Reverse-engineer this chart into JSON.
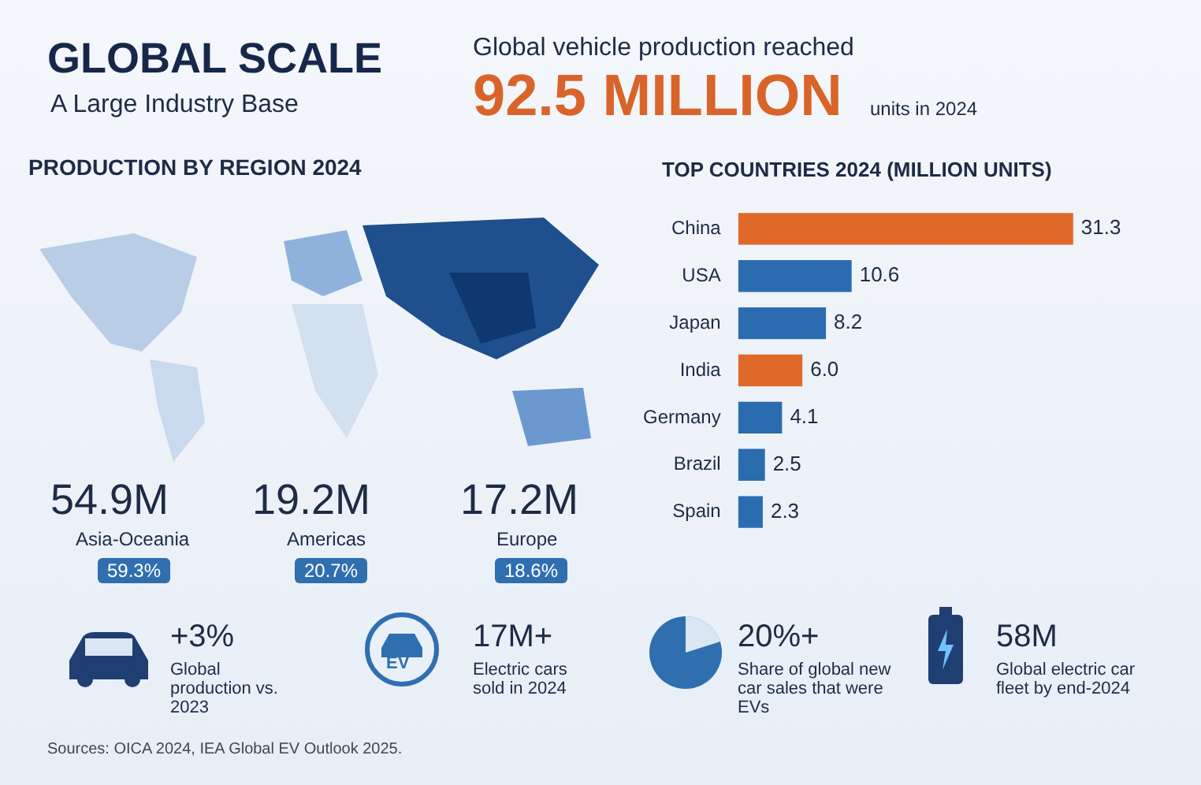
{
  "chart_data": [
    {
      "type": "other",
      "title": "GLOBAL SCALE",
      "subtitle": "A Large Industry Base",
      "annotations": [
        "Global vehicle production reached",
        "92.5 MILLION",
        "units in 2024"
      ]
    },
    {
      "type": "other",
      "title": "PRODUCTION BY REGION 2024",
      "annotations": [
        "54.9M",
        "Asia-Oceania",
        "59.3%",
        "19.2M",
        "Americas",
        "20.7%",
        "17.2M",
        "Europe",
        "18.6%"
      ]
    },
    {
      "type": "bar",
      "orientation": "horizontal",
      "title": "TOP COUNTRIES 2024 (MILLION UNITS)",
      "categories": [
        "China",
        "USA",
        "Japan",
        "India",
        "Germany",
        "Brazil",
        "Spain"
      ],
      "values": [
        31.3,
        10.6,
        8.2,
        6.0,
        4.1,
        2.5,
        2.3
      ],
      "colors": [
        "#e0692a",
        "#2b6cb0",
        "#2b6cb0",
        "#e0692a",
        "#2b6cb0",
        "#2b6cb0",
        "#2b6cb0"
      ],
      "value_labels": [
        "31.3",
        "10.6",
        "8.2",
        "6.0",
        "4.1",
        "2.5",
        "2.3"
      ],
      "tick_labels": "y"
    },
    {
      "type": "other",
      "annotations": [
        "+3%",
        "Global production vs. 2023",
        "EV",
        "17M+",
        "Electric cars sold in 2024",
        "20%+",
        "Share of global new car sales that were EVs",
        "58M",
        "Global electric car fleet by end-2024",
        "Sources: OICA 2024, IEA Global EV Outlook 2025."
      ]
    }
  ]
}
